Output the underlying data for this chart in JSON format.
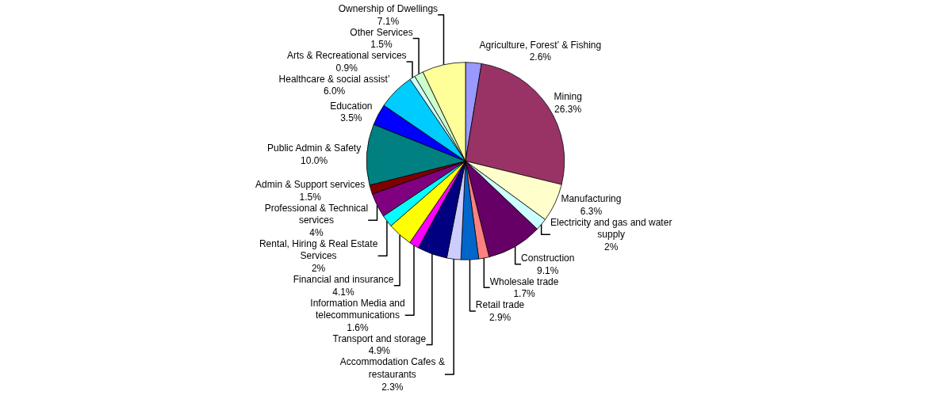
{
  "chart_data": {
    "type": "pie",
    "categories": [
      "Agriculture, Forest’ & Fishing",
      "Mining",
      "Manufacturing",
      "Electricity and gas and water supply",
      "Construction",
      "Wholesale trade",
      "Retail trade",
      "Accommodation Cafes & restaurants",
      "Transport and storage",
      "Information Media and telecommunications",
      "Financial and insurance",
      "Rental, Hiring & Real Estate Services",
      "Professional & Technical services",
      "Admin & Support services",
      "Public Admin & Safety",
      "Education",
      "Healthcare & social assist’",
      "Arts & Recreational services",
      "Other Services",
      "Ownership of Dwellings"
    ],
    "values": [
      2.6,
      26.3,
      6.3,
      2,
      9.1,
      1.7,
      2.9,
      2.3,
      4.9,
      1.6,
      4.1,
      2,
      4,
      1.5,
      10.0,
      3.5,
      6.0,
      0.9,
      1.5,
      7.1
    ],
    "value_labels": [
      "2.6%",
      "26.3%",
      "6.3%",
      "2%",
      "9.1%",
      "1.7%",
      "2.9%",
      "2.3%",
      "4.9%",
      "1.6%",
      "4.1%",
      "2%",
      "4%",
      "1.5%",
      "10.0%",
      "3.5%",
      "6.0%",
      "0.9%",
      "1.5%",
      "7.1%"
    ],
    "colors": [
      "#9999ff",
      "#993366",
      "#ffffcc",
      "#ccffff",
      "#660066",
      "#ff8080",
      "#0066cc",
      "#ccccff",
      "#000080",
      "#ff00ff",
      "#ffff00",
      "#00ffff",
      "#800080",
      "#800000",
      "#008080",
      "#0000ff",
      "#00ccff",
      "#ccffff",
      "#ccffcc",
      "#ffff99"
    ],
    "legend": false
  }
}
